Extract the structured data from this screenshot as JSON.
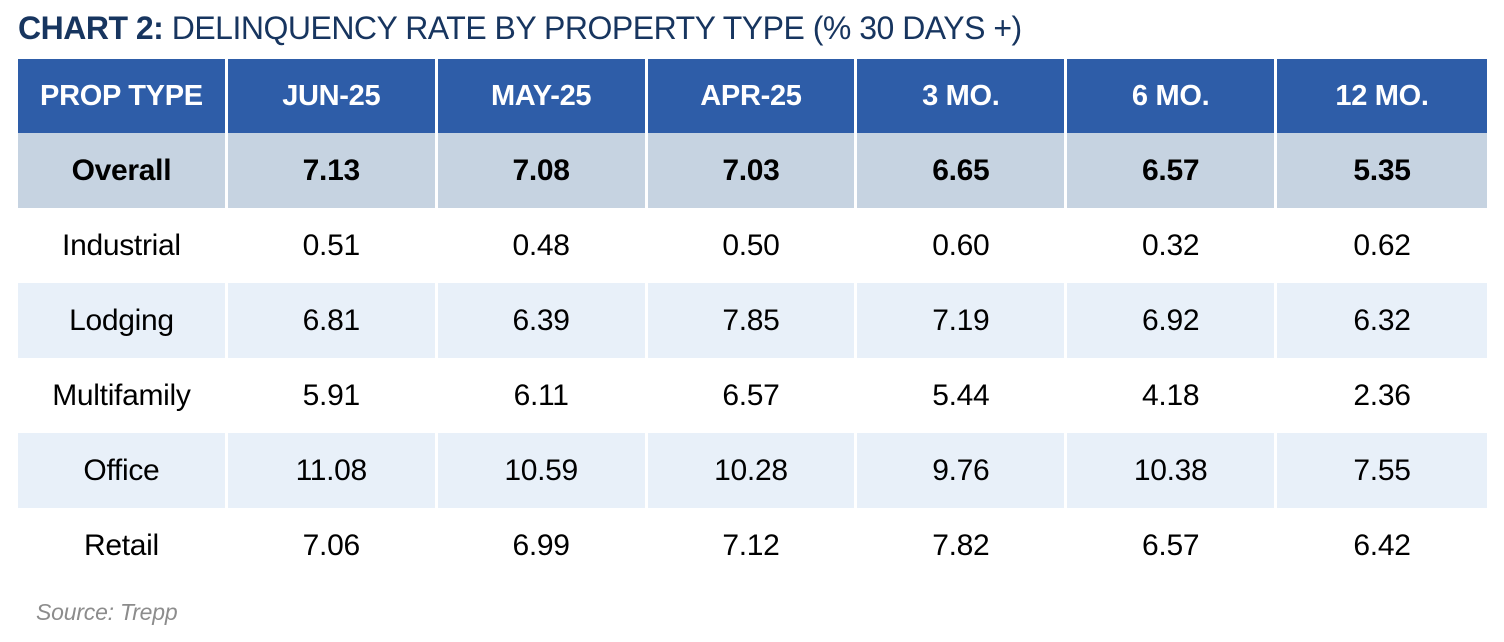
{
  "title": {
    "prefix": "CHART 2:",
    "rest": " DELINQUENCY RATE BY PROPERTY TYPE (% 30 DAYS +)"
  },
  "table": {
    "columns": [
      "PROP TYPE",
      "JUN-25",
      "MAY-25",
      "APR-25",
      "3 MO.",
      "6 MO.",
      "12 MO."
    ],
    "rows": [
      {
        "label": "Overall",
        "shading": "overall",
        "values": [
          "7.13",
          "7.08",
          "7.03",
          "6.65",
          "6.57",
          "5.35"
        ]
      },
      {
        "label": "Industrial",
        "shading": "plain",
        "values": [
          "0.51",
          "0.48",
          "0.50",
          "0.60",
          "0.32",
          "0.62"
        ]
      },
      {
        "label": "Lodging",
        "shading": "shaded",
        "values": [
          "6.81",
          "6.39",
          "7.85",
          "7.19",
          "6.92",
          "6.32"
        ]
      },
      {
        "label": "Multifamily",
        "shading": "plain",
        "values": [
          "5.91",
          "6.11",
          "6.57",
          "5.44",
          "4.18",
          "2.36"
        ]
      },
      {
        "label": "Office",
        "shading": "shaded",
        "values": [
          "11.08",
          "10.59",
          "10.28",
          "9.76",
          "10.38",
          "7.55"
        ]
      },
      {
        "label": "Retail",
        "shading": "plain",
        "values": [
          "7.06",
          "6.99",
          "7.12",
          "7.82",
          "6.57",
          "6.42"
        ]
      }
    ]
  },
  "source": "Source: Trepp",
  "colors": {
    "title_navy": "#17355F",
    "header_blue": "#2E5DA8",
    "header_text": "#ffffff",
    "overall_row": "#C6D3E1",
    "shaded_row": "#E8F0F9",
    "plain_row": "#ffffff",
    "cell_text": "#000000",
    "source_gray": "#8C8C8C"
  },
  "chart_data": {
    "type": "table",
    "title": "CHART 2: DELINQUENCY RATE BY PROPERTY TYPE (% 30 DAYS +)",
    "columns": [
      "PROP TYPE",
      "JUN-25",
      "MAY-25",
      "APR-25",
      "3 MO.",
      "6 MO.",
      "12 MO."
    ],
    "rows": [
      [
        "Overall",
        7.13,
        7.08,
        7.03,
        6.65,
        6.57,
        5.35
      ],
      [
        "Industrial",
        0.51,
        0.48,
        0.5,
        0.6,
        0.32,
        0.62
      ],
      [
        "Lodging",
        6.81,
        6.39,
        7.85,
        7.19,
        6.92,
        6.32
      ],
      [
        "Multifamily",
        5.91,
        6.11,
        6.57,
        5.44,
        4.18,
        2.36
      ],
      [
        "Office",
        11.08,
        10.59,
        10.28,
        9.76,
        10.38,
        7.55
      ],
      [
        "Retail",
        7.06,
        6.99,
        7.12,
        7.82,
        6.57,
        6.42
      ]
    ],
    "source": "Source: Trepp",
    "units": "percent delinquent, 30+ days"
  }
}
